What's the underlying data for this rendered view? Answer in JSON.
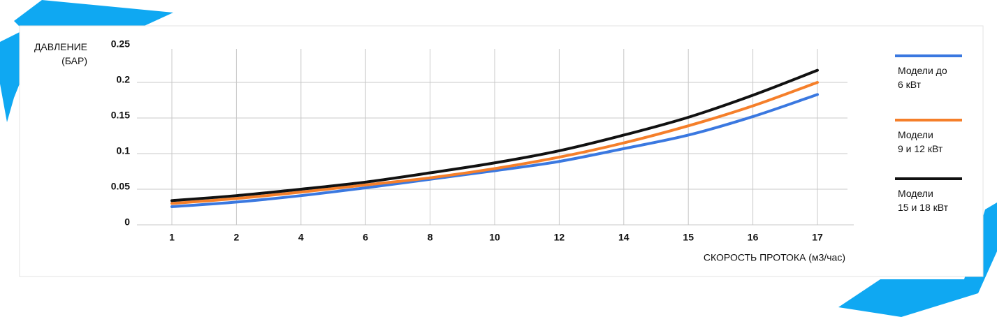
{
  "chart_data": {
    "type": "line",
    "y_label": "ДАВЛЕНИЕ\n(БАР)",
    "x_label": "СКОРОСТЬ ПРОТОКА (м3/час)",
    "categories": [
      "1",
      "2",
      "4",
      "6",
      "8",
      "10",
      "12",
      "14",
      "15",
      "16",
      "17"
    ],
    "ylim": [
      0,
      0.25
    ],
    "yticks": [
      0.25,
      0.2,
      0.15,
      0.1,
      0.05,
      0
    ],
    "grid": true,
    "legend": "right",
    "series": [
      {
        "name": "Модели до\n6 кВт",
        "color": "#3a78e0",
        "values": [
          0.0255,
          0.032,
          0.041,
          0.052,
          0.064,
          0.076,
          0.089,
          0.107,
          0.126,
          0.152,
          0.183
        ]
      },
      {
        "name": "Модели\n9 и 12 кВт",
        "color": "#f57f2a",
        "values": [
          0.03,
          0.037,
          0.046,
          0.056,
          0.066,
          0.079,
          0.095,
          0.115,
          0.139,
          0.167,
          0.2
        ]
      },
      {
        "name": "Модели\n15 и 18 кВт",
        "color": "#111111",
        "values": [
          0.034,
          0.041,
          0.05,
          0.06,
          0.073,
          0.087,
          0.104,
          0.126,
          0.151,
          0.182,
          0.217
        ]
      }
    ]
  }
}
